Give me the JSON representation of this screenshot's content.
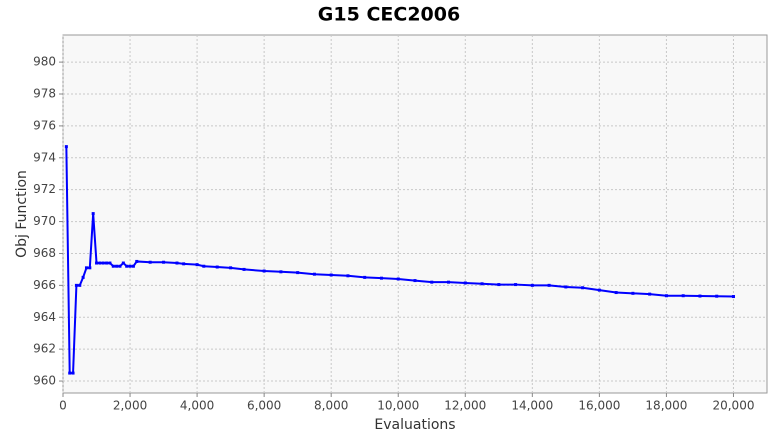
{
  "chart_data": {
    "type": "line",
    "title": "G15 CEC2006",
    "x_label": "Evaluations",
    "y_label": "Obj Function",
    "x": [
      100,
      200,
      300,
      400,
      500,
      600,
      700,
      800,
      900,
      1000,
      1100,
      1200,
      1300,
      1400,
      1500,
      1600,
      1700,
      1800,
      1900,
      2000,
      2100,
      2200,
      2600,
      3000,
      3400,
      3600,
      4000,
      4200,
      4600,
      5000,
      5400,
      6000,
      6500,
      7000,
      7500,
      8000,
      8500,
      9000,
      9500,
      10000,
      10500,
      11000,
      11500,
      12000,
      12500,
      13000,
      13500,
      14000,
      14500,
      15000,
      15500,
      16000,
      16500,
      17000,
      17500,
      18000,
      18500,
      19000,
      19500,
      20000
    ],
    "series": [
      {
        "name": "Obj Function",
        "color": "#0000ff",
        "values": [
          974.7,
          960.5,
          960.5,
          966.0,
          966.0,
          966.5,
          967.1,
          967.1,
          970.5,
          967.4,
          967.4,
          967.4,
          967.4,
          967.4,
          967.2,
          967.2,
          967.2,
          967.4,
          967.2,
          967.2,
          967.2,
          967.5,
          967.45,
          967.45,
          967.4,
          967.35,
          967.3,
          967.2,
          967.15,
          967.1,
          967.0,
          966.9,
          966.85,
          966.8,
          966.7,
          966.65,
          966.6,
          966.5,
          966.45,
          966.4,
          966.3,
          966.2,
          966.2,
          966.15,
          966.1,
          966.05,
          966.05,
          966.0,
          966.0,
          965.9,
          965.85,
          965.7,
          965.55,
          965.5,
          965.45,
          965.35,
          965.35,
          965.33,
          965.32,
          965.3
        ]
      }
    ],
    "xlim": [
      0,
      21000
    ],
    "ylim": [
      959.25,
      981.7
    ],
    "xticks": [
      0,
      {
        "value": 2000,
        "label": "2,000"
      },
      {
        "value": 4000,
        "label": "4,000"
      },
      {
        "value": 6000,
        "label": "6,000"
      },
      {
        "value": 8000,
        "label": "8,000"
      },
      {
        "value": 10000,
        "label": "10,000"
      },
      {
        "value": 12000,
        "label": "12,000"
      },
      {
        "value": 14000,
        "label": "14,000"
      },
      {
        "value": 16000,
        "label": "16,000"
      },
      {
        "value": 18000,
        "label": "18,000"
      },
      {
        "value": 20000,
        "label": "20,000"
      }
    ],
    "yticks": [
      960,
      962,
      964,
      966,
      968,
      970,
      972,
      974,
      976,
      978,
      980
    ],
    "grid": true
  }
}
